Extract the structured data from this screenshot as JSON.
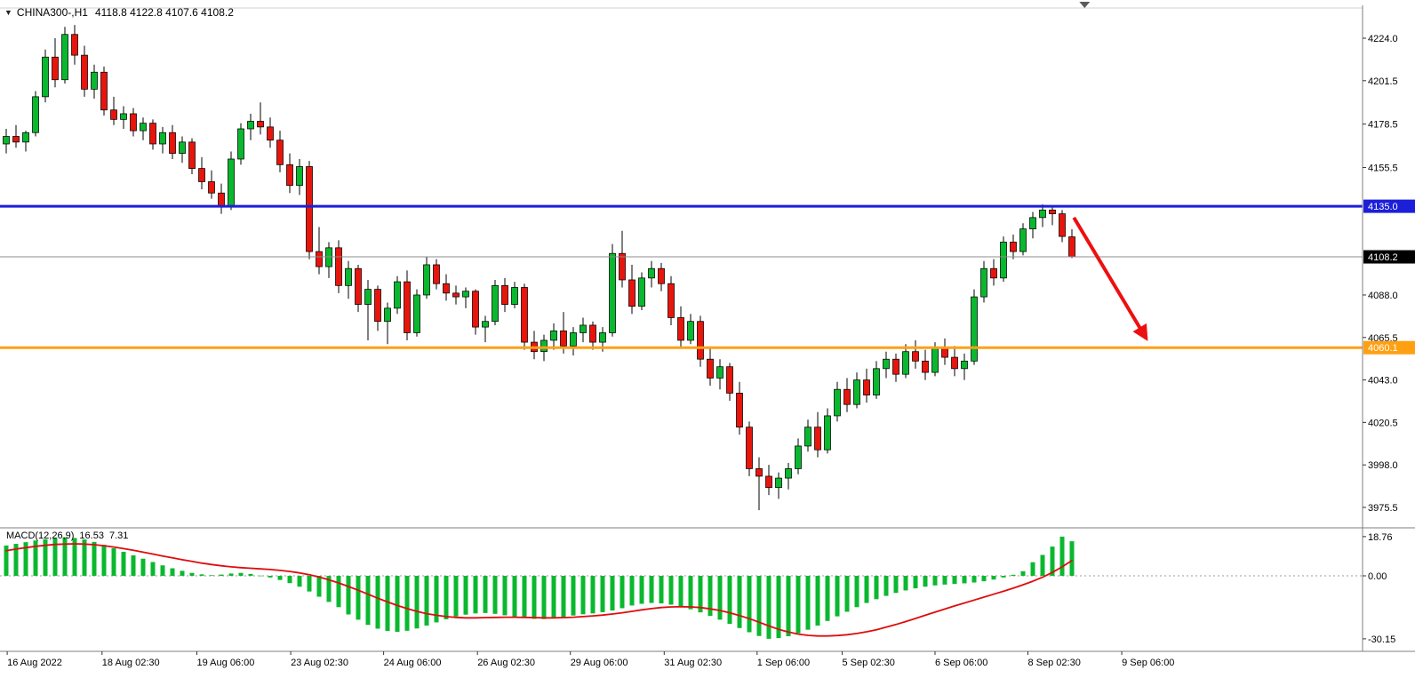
{
  "window": {
    "dropdown_icon": "▼",
    "symbol_period": "CHINA300-,H1",
    "ohlc_values": "4118.8 4122.8 4107.6 4108.2"
  },
  "colors": {
    "background": "#ffffff",
    "bull": "#0ab82f",
    "bear": "#e8150d",
    "wick": "#000000",
    "frame": "#7f7f7f",
    "top_border": "#d0d0d0",
    "axis_text": "#000000",
    "histogram": "#0ab82f",
    "signal_line": "#dd0d0d",
    "zero_line": "#9a9a9a",
    "arrow": "#ed0f0f",
    "resistance": "#1c1fd8",
    "support": "#ffa013",
    "current_price": "#8c8c8c"
  },
  "price_axis": {
    "ticks": [
      4224.0,
      4201.5,
      4178.5,
      4155.5,
      4088.0,
      4065.5,
      4043.0,
      4020.5,
      3998.0,
      3975.5
    ],
    "badges": [
      {
        "text": "4135.0",
        "price": 4135.0,
        "bg": "#1c1fd8",
        "fg": "#ffffff"
      },
      {
        "text": "4108.2",
        "price": 4108.2,
        "bg": "#000000",
        "fg": "#ffffff"
      },
      {
        "text": "4060.1",
        "price": 4060.1,
        "bg": "#ffa013",
        "fg": "#ffffff"
      }
    ]
  },
  "time_axis": {
    "labels": [
      {
        "label": "16 Aug 2022",
        "bar": 0.1
      },
      {
        "label": "18 Aug 02:30",
        "bar": 9.8
      },
      {
        "label": "19 Aug 06:00",
        "bar": 19.5
      },
      {
        "label": "23 Aug 02:30",
        "bar": 29.1
      },
      {
        "label": "24 Aug 06:00",
        "bar": 38.6
      },
      {
        "label": "26 Aug 02:30",
        "bar": 48.2
      },
      {
        "label": "29 Aug 06:00",
        "bar": 57.7
      },
      {
        "label": "31 Aug 02:30",
        "bar": 67.3
      },
      {
        "label": "1 Sep 06:00",
        "bar": 76.8
      },
      {
        "label": "5 Sep 02:30",
        "bar": 85.5
      },
      {
        "label": "6 Sep 06:00",
        "bar": 95.0
      },
      {
        "label": "8 Sep 02:30",
        "bar": 104.5
      },
      {
        "label": "9 Sep 06:00",
        "bar": 114.1
      }
    ]
  },
  "macd_panel": {
    "label": "MACD(12,26,9)",
    "main_value": "16.53",
    "signal_value": "7.31",
    "axis_labels": [
      18.76,
      0.0,
      -30.15
    ]
  },
  "annotations": {
    "levels": {
      "resistance_line": {
        "price": 4135.0,
        "color": "#1c1fd8",
        "width": 3
      },
      "current_price_line": {
        "price": 4108.2,
        "color": "#8c8c8c",
        "width": 1
      },
      "support_line": {
        "price": 4060.1,
        "color": "#ffa013",
        "width": 3
      }
    },
    "arrow": {
      "color": "#ed0f0f",
      "from": {
        "bar": 109.2,
        "price": 4129
      },
      "to": {
        "bar": 116.6,
        "price": 4065
      }
    },
    "scroll_marker_bar": 110.3
  },
  "chart_data": {
    "type": "candlestick",
    "title": "CHINA300-,H1",
    "symbol": "CHINA300-",
    "timeframe": "H1",
    "price_ylim": [
      3968,
      4240
    ],
    "current_bar": {
      "open": 4118.8,
      "high": 4122.8,
      "low": 4107.6,
      "close": 4108.2
    },
    "candles": [
      [
        4168,
        4176,
        4163,
        4172
      ],
      [
        4172,
        4178,
        4166,
        4169
      ],
      [
        4169,
        4175,
        4164,
        4174
      ],
      [
        4174,
        4196,
        4172,
        4193
      ],
      [
        4193,
        4218,
        4190,
        4214
      ],
      [
        4214,
        4224,
        4198,
        4202
      ],
      [
        4202,
        4230,
        4200,
        4226
      ],
      [
        4226,
        4231,
        4210,
        4215
      ],
      [
        4215,
        4220,
        4193,
        4197
      ],
      [
        4197,
        4210,
        4192,
        4206
      ],
      [
        4206,
        4209,
        4183,
        4186
      ],
      [
        4186,
        4193,
        4178,
        4181
      ],
      [
        4181,
        4188,
        4176,
        4184
      ],
      [
        4184,
        4187,
        4172,
        4175
      ],
      [
        4175,
        4182,
        4170,
        4179
      ],
      [
        4179,
        4181,
        4165,
        4168
      ],
      [
        4168,
        4177,
        4163,
        4174
      ],
      [
        4174,
        4178,
        4160,
        4163
      ],
      [
        4163,
        4172,
        4158,
        4169
      ],
      [
        4169,
        4171,
        4152,
        4155
      ],
      [
        4155,
        4161,
        4144,
        4148
      ],
      [
        4148,
        4154,
        4139,
        4142
      ],
      [
        4142,
        4147,
        4131,
        4135
      ],
      [
        4135,
        4164,
        4133,
        4160
      ],
      [
        4160,
        4179,
        4157,
        4176
      ],
      [
        4176,
        4184,
        4170,
        4180
      ],
      [
        4180,
        4190,
        4173,
        4177
      ],
      [
        4177,
        4182,
        4166,
        4170
      ],
      [
        4170,
        4175,
        4153,
        4157
      ],
      [
        4157,
        4163,
        4142,
        4146
      ],
      [
        4146,
        4160,
        4141,
        4156
      ],
      [
        4156,
        4159,
        4107,
        4111
      ],
      [
        4111,
        4124,
        4099,
        4103
      ],
      [
        4103,
        4116,
        4097,
        4113
      ],
      [
        4113,
        4117,
        4089,
        4093
      ],
      [
        4093,
        4106,
        4086,
        4102
      ],
      [
        4102,
        4104,
        4079,
        4083
      ],
      [
        4083,
        4096,
        4064,
        4091
      ],
      [
        4091,
        4093,
        4069,
        4074
      ],
      [
        4074,
        4084,
        4062,
        4081
      ],
      [
        4081,
        4098,
        4078,
        4095
      ],
      [
        4095,
        4101,
        4064,
        4068
      ],
      [
        4068,
        4091,
        4066,
        4088
      ],
      [
        4088,
        4108,
        4086,
        4104
      ],
      [
        4104,
        4107,
        4091,
        4094
      ],
      [
        4094,
        4099,
        4085,
        4089
      ],
      [
        4089,
        4093,
        4083,
        4087
      ],
      [
        4087,
        4092,
        4081,
        4090
      ],
      [
        4090,
        4091,
        4067,
        4071
      ],
      [
        4071,
        4077,
        4063,
        4074
      ],
      [
        4074,
        4096,
        4072,
        4093
      ],
      [
        4093,
        4097,
        4079,
        4083
      ],
      [
        4083,
        4095,
        4081,
        4092
      ],
      [
        4092,
        4094,
        4059,
        4063
      ],
      [
        4063,
        4069,
        4054,
        4058
      ],
      [
        4058,
        4067,
        4053,
        4064
      ],
      [
        4064,
        4073,
        4059,
        4069
      ],
      [
        4069,
        4079,
        4057,
        4061
      ],
      [
        4061,
        4071,
        4056,
        4068
      ],
      [
        4068,
        4076,
        4063,
        4072
      ],
      [
        4072,
        4074,
        4059,
        4063
      ],
      [
        4063,
        4071,
        4058,
        4068
      ],
      [
        4068,
        4115,
        4066,
        4110
      ],
      [
        4110,
        4122,
        4092,
        4096
      ],
      [
        4096,
        4104,
        4078,
        4082
      ],
      [
        4082,
        4100,
        4080,
        4097
      ],
      [
        4097,
        4106,
        4092,
        4102
      ],
      [
        4102,
        4105,
        4090,
        4094
      ],
      [
        4094,
        4098,
        4072,
        4076
      ],
      [
        4076,
        4082,
        4060,
        4064
      ],
      [
        4064,
        4078,
        4062,
        4074
      ],
      [
        4074,
        4077,
        4050,
        4054
      ],
      [
        4054,
        4060,
        4040,
        4044
      ],
      [
        4044,
        4054,
        4038,
        4050
      ],
      [
        4050,
        4052,
        4032,
        4036
      ],
      [
        4036,
        4042,
        4014,
        4018
      ],
      [
        4018,
        4021,
        3992,
        3996
      ],
      [
        3996,
        4002,
        3974,
        3992
      ],
      [
        3992,
        3998,
        3982,
        3986
      ],
      [
        3986,
        3994,
        3980,
        3991
      ],
      [
        3991,
        3999,
        3985,
        3996
      ],
      [
        3996,
        4012,
        3993,
        4008
      ],
      [
        4008,
        4022,
        4005,
        4018
      ],
      [
        4018,
        4026,
        4002,
        4006
      ],
      [
        4006,
        4028,
        4004,
        4024
      ],
      [
        4024,
        4042,
        4021,
        4038
      ],
      [
        4038,
        4044,
        4026,
        4030
      ],
      [
        4030,
        4047,
        4028,
        4043
      ],
      [
        4043,
        4049,
        4031,
        4035
      ],
      [
        4035,
        4053,
        4033,
        4049
      ],
      [
        4049,
        4058,
        4044,
        4054
      ],
      [
        4054,
        4057,
        4042,
        4046
      ],
      [
        4046,
        4062,
        4044,
        4058
      ],
      [
        4058,
        4064,
        4049,
        4053
      ],
      [
        4053,
        4059,
        4043,
        4047
      ],
      [
        4047,
        4063,
        4045,
        4060
      ],
      [
        4060,
        4065,
        4051,
        4055
      ],
      [
        4055,
        4061,
        4045,
        4049
      ],
      [
        4049,
        4057,
        4043,
        4053
      ],
      [
        4053,
        4091,
        4051,
        4087
      ],
      [
        4087,
        4106,
        4084,
        4102
      ],
      [
        4102,
        4107,
        4093,
        4097
      ],
      [
        4097,
        4119,
        4095,
        4116
      ],
      [
        4116,
        4120,
        4107,
        4111
      ],
      [
        4111,
        4126,
        4109,
        4123
      ],
      [
        4123,
        4132,
        4118,
        4129
      ],
      [
        4129,
        4136,
        4124,
        4133
      ],
      [
        4133,
        4135,
        4125,
        4131
      ],
      [
        4131,
        4133,
        4116,
        4119
      ],
      [
        4118.8,
        4122.8,
        4107.6,
        4108.2
      ]
    ],
    "macd": {
      "type": "histogram+line",
      "ylim": [
        -30.15,
        18.76
      ],
      "histogram": [
        14.5,
        15.3,
        16.1,
        16.9,
        17.5,
        18.0,
        18.4,
        18.1,
        17.4,
        16.2,
        14.8,
        13.2,
        11.5,
        9.8,
        8.2,
        6.6,
        5.0,
        3.6,
        2.4,
        1.4,
        0.7,
        0.3,
        0.6,
        1.1,
        1.4,
        0.9,
        0.1,
        -0.8,
        -2.0,
        -3.5,
        -5.2,
        -7.5,
        -10.0,
        -12.5,
        -15.0,
        -18.5,
        -21.0,
        -23.5,
        -25.3,
        -26.4,
        -26.8,
        -26.3,
        -25.2,
        -23.8,
        -22.3,
        -20.8,
        -19.5,
        -18.6,
        -18.0,
        -17.8,
        -18.2,
        -18.9,
        -19.6,
        -20.2,
        -20.6,
        -20.7,
        -20.4,
        -19.8,
        -19.0,
        -18.4,
        -18.0,
        -17.4,
        -16.6,
        -15.5,
        -14.2,
        -13.4,
        -13.0,
        -13.2,
        -13.8,
        -14.8,
        -16.0,
        -17.5,
        -19.2,
        -21.0,
        -23.0,
        -25.0,
        -27.0,
        -28.8,
        -30.15,
        -29.8,
        -28.9,
        -27.5,
        -25.8,
        -23.8,
        -21.6,
        -19.4,
        -17.2,
        -15.0,
        -13.0,
        -11.2,
        -9.6,
        -8.2,
        -7.0,
        -6.0,
        -5.2,
        -4.6,
        -4.2,
        -3.9,
        -3.6,
        -3.2,
        -2.6,
        -1.8,
        -0.8,
        0.5,
        2.2,
        6.5,
        10.0,
        14.0,
        18.76,
        16.53
      ],
      "signal": [
        12.0,
        12.8,
        13.5,
        14.1,
        14.6,
        15.0,
        15.2,
        15.3,
        15.2,
        14.9,
        14.4,
        13.8,
        13.0,
        12.2,
        11.3,
        10.4,
        9.5,
        8.6,
        7.7,
        6.9,
        6.1,
        5.4,
        4.8,
        4.3,
        3.9,
        3.6,
        3.3,
        3.0,
        2.6,
        2.1,
        1.4,
        0.5,
        -0.6,
        -1.9,
        -3.4,
        -5.1,
        -6.9,
        -8.8,
        -10.7,
        -12.5,
        -14.2,
        -15.7,
        -17.0,
        -18.1,
        -18.9,
        -19.5,
        -19.9,
        -20.1,
        -20.1,
        -20.0,
        -19.9,
        -19.8,
        -19.8,
        -19.9,
        -20.0,
        -20.1,
        -20.1,
        -20.0,
        -19.8,
        -19.5,
        -19.2,
        -18.8,
        -18.3,
        -17.7,
        -17.0,
        -16.3,
        -15.7,
        -15.2,
        -14.9,
        -14.8,
        -14.9,
        -15.2,
        -15.8,
        -16.6,
        -17.7,
        -19.0,
        -20.5,
        -22.2,
        -24.0,
        -25.6,
        -26.9,
        -27.9,
        -28.5,
        -28.8,
        -28.8,
        -28.6,
        -28.2,
        -27.6,
        -26.8,
        -25.8,
        -24.6,
        -23.3,
        -21.9,
        -20.4,
        -18.9,
        -17.4,
        -15.9,
        -14.4,
        -13.0,
        -11.6,
        -10.2,
        -8.8,
        -7.4,
        -5.9,
        -4.3,
        -2.6,
        -0.7,
        1.6,
        4.3,
        7.31
      ]
    }
  }
}
